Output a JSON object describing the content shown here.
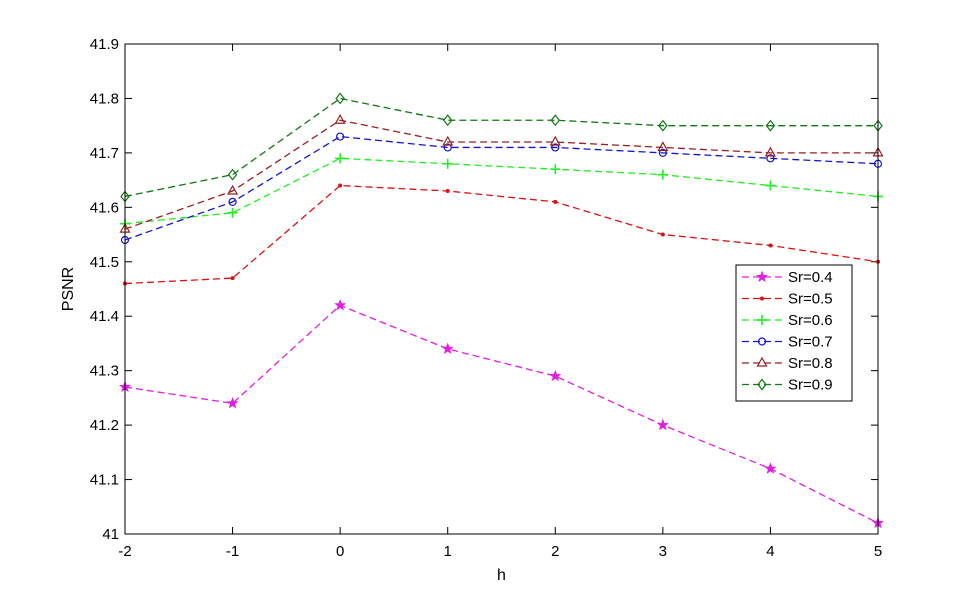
{
  "chart_data": {
    "type": "line",
    "title": "",
    "xlabel": "h",
    "ylabel": "PSNR",
    "x": [
      -2,
      -1,
      0,
      1,
      2,
      3,
      4,
      5
    ],
    "xlim": [
      -2,
      5
    ],
    "ylim": [
      41,
      41.9
    ],
    "xticks": [
      "-2",
      "-1",
      "0",
      "1",
      "2",
      "3",
      "4",
      "5"
    ],
    "yticks": [
      "41",
      "41.1",
      "41.2",
      "41.3",
      "41.4",
      "41.5",
      "41.6",
      "41.7",
      "41.8",
      "41.9"
    ],
    "grid": false,
    "legend_position": "right",
    "series": [
      {
        "name": "Sr=0.4",
        "color": "#e020e0",
        "marker": "star",
        "values": [
          41.27,
          41.24,
          41.42,
          41.34,
          41.29,
          41.2,
          41.12,
          41.02
        ]
      },
      {
        "name": "Sr=0.5",
        "color": "#dd1010",
        "marker": "point",
        "values": [
          41.46,
          41.47,
          41.64,
          41.63,
          41.61,
          41.55,
          41.53,
          41.5
        ]
      },
      {
        "name": "Sr=0.6",
        "color": "#22ee22",
        "marker": "plus",
        "values": [
          41.57,
          41.59,
          41.69,
          41.68,
          41.67,
          41.66,
          41.64,
          41.62
        ]
      },
      {
        "name": "Sr=0.7",
        "color": "#1515d0",
        "marker": "circle",
        "values": [
          41.54,
          41.61,
          41.73,
          41.71,
          41.71,
          41.7,
          41.69,
          41.68
        ]
      },
      {
        "name": "Sr=0.8",
        "color": "#992020",
        "marker": "triangle",
        "values": [
          41.56,
          41.63,
          41.76,
          41.72,
          41.72,
          41.71,
          41.7,
          41.7
        ]
      },
      {
        "name": "Sr=0.9",
        "color": "#117711",
        "marker": "diamond",
        "values": [
          41.62,
          41.66,
          41.8,
          41.76,
          41.76,
          41.75,
          41.75,
          41.75
        ]
      }
    ]
  }
}
